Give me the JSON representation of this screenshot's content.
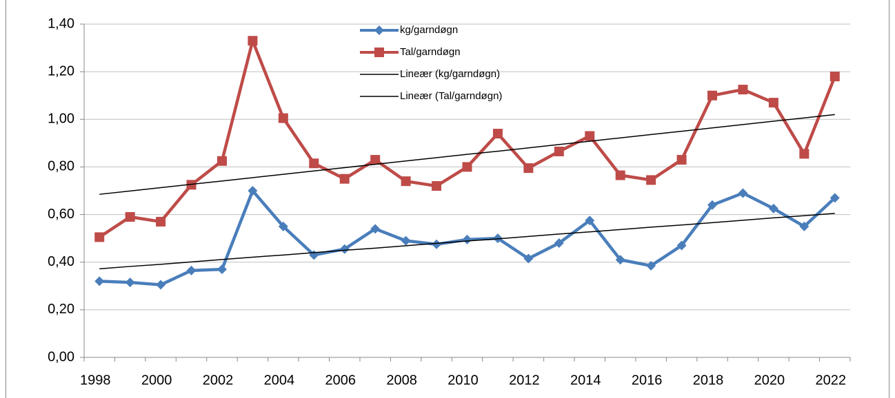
{
  "chart_data": {
    "type": "line",
    "categories": [
      "1998",
      null,
      "2000",
      null,
      "2002",
      null,
      "2004",
      null,
      "2006",
      null,
      "2008",
      null,
      "2010",
      null,
      "2012",
      null,
      "2014",
      null,
      "2016",
      null,
      "2018",
      null,
      "2020",
      null,
      "2022"
    ],
    "series": [
      {
        "name": "kg/garndøgn",
        "color": "#4a7ebb",
        "marker": "diamond",
        "values": [
          0.32,
          0.315,
          0.305,
          0.365,
          0.37,
          0.7,
          0.55,
          0.43,
          0.455,
          0.54,
          0.49,
          0.475,
          0.495,
          0.5,
          0.415,
          0.48,
          0.575,
          0.41,
          0.385,
          0.47,
          0.64,
          0.69,
          0.625,
          0.55,
          0.67
        ]
      },
      {
        "name": "Tal/garndøgn",
        "color": "#be4b48",
        "marker": "square",
        "values": [
          0.505,
          0.59,
          0.57,
          0.725,
          0.825,
          1.33,
          1.005,
          0.815,
          0.75,
          0.83,
          0.74,
          0.72,
          0.8,
          0.94,
          0.795,
          0.865,
          0.93,
          0.765,
          0.745,
          0.83,
          1.1,
          1.125,
          1.07,
          0.855,
          1.18
        ]
      },
      {
        "name": "Lineær (kg/garndøgn)",
        "color": "#000000",
        "marker": "none",
        "values": [
          0.372,
          0.382,
          0.391,
          0.401,
          0.411,
          0.421,
          0.43,
          0.44,
          0.45,
          0.459,
          0.469,
          0.479,
          0.489,
          0.498,
          0.508,
          0.518,
          0.527,
          0.537,
          0.547,
          0.556,
          0.566,
          0.576,
          0.586,
          0.595,
          0.605
        ]
      },
      {
        "name": "Lineær (Tal/garndøgn)",
        "color": "#000000",
        "marker": "none",
        "values": [
          0.685,
          0.699,
          0.713,
          0.727,
          0.741,
          0.755,
          0.769,
          0.783,
          0.797,
          0.811,
          0.825,
          0.839,
          0.853,
          0.866,
          0.88,
          0.894,
          0.908,
          0.922,
          0.936,
          0.95,
          0.964,
          0.978,
          0.992,
          1.006,
          1.02
        ]
      }
    ],
    "ylim": [
      0,
      1.4
    ],
    "yticks": [
      {
        "value": 0,
        "label": "0,00"
      },
      {
        "value": 0.2,
        "label": "0,20"
      },
      {
        "value": 0.4,
        "label": "0,40"
      },
      {
        "value": 0.6,
        "label": "0,60"
      },
      {
        "value": 0.8,
        "label": "0,80"
      },
      {
        "value": 1.0,
        "label": "1,00"
      },
      {
        "value": 1.2,
        "label": "1,20"
      },
      {
        "value": 1.4,
        "label": "1,40"
      }
    ],
    "grid": true,
    "legend": "top"
  }
}
